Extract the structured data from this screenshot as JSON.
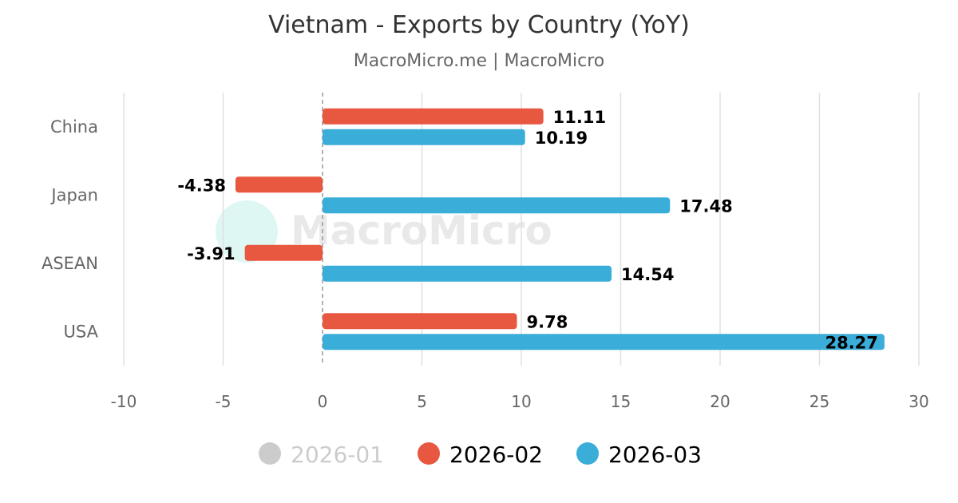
{
  "title": "Vietnam - Exports by Country (YoY)",
  "subtitle": "MacroMicro.me | MacroMicro",
  "watermark": "MacroMicro",
  "colors": {
    "2026-01": "#cccccc",
    "2026-02": "#e8573f",
    "2026-03": "#3badd9",
    "grid": "#e0e0e0",
    "zero_line": "#999999"
  },
  "chart_data": {
    "type": "bar",
    "orientation": "horizontal",
    "categories": [
      "China",
      "Japan",
      "ASEAN",
      "USA"
    ],
    "series": [
      {
        "name": "2026-01",
        "values": [
          null,
          null,
          null,
          null
        ],
        "visible": false
      },
      {
        "name": "2026-02",
        "values": [
          11.11,
          -4.38,
          -3.91,
          9.78
        ],
        "labels": [
          "11.11",
          "-4.38",
          "-3.91",
          "9.78"
        ],
        "visible": true
      },
      {
        "name": "2026-03",
        "values": [
          10.19,
          17.48,
          14.54,
          28.27
        ],
        "labels": [
          "10.19",
          "17.48",
          "14.54",
          "28.27"
        ],
        "visible": true
      }
    ],
    "xlim": [
      -10,
      30
    ],
    "xticks": [
      -10,
      -5,
      0,
      5,
      10,
      15,
      20,
      25,
      30
    ],
    "xtick_labels": [
      "-10",
      "-5",
      "0",
      "5",
      "10",
      "15",
      "20",
      "25",
      "30"
    ],
    "grid": true,
    "legend_position": "bottom"
  }
}
